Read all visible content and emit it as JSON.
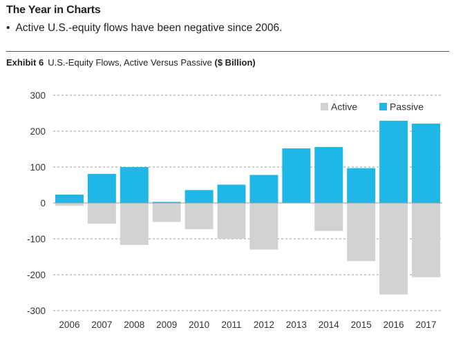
{
  "header": {
    "title": "The Year in Charts",
    "bullet": "Active U.S.-equity flows have been negative since 2006."
  },
  "exhibit": {
    "label": "Exhibit 6",
    "title": "U.S.-Equity Flows, Active Versus Passive",
    "unit": "($ Billion)"
  },
  "chart_data": {
    "type": "bar",
    "categories": [
      "2006",
      "2007",
      "2008",
      "2009",
      "2010",
      "2011",
      "2012",
      "2013",
      "2014",
      "2015",
      "2016",
      "2017"
    ],
    "series": [
      {
        "name": "Active",
        "color": "#d1d2d4",
        "values": [
          -8,
          -58,
          -117,
          -53,
          -73,
          -100,
          -130,
          0,
          -78,
          -162,
          -255,
          -207
        ]
      },
      {
        "name": "Passive",
        "color": "#1fb8e6",
        "values": [
          23,
          81,
          100,
          3,
          36,
          51,
          78,
          152,
          156,
          97,
          229,
          221
        ]
      }
    ],
    "yticks": [
      300,
      200,
      100,
      0,
      -100,
      -200,
      -300
    ],
    "ylim": [
      -300,
      300
    ],
    "grid": true,
    "legend_position": "top-right"
  }
}
